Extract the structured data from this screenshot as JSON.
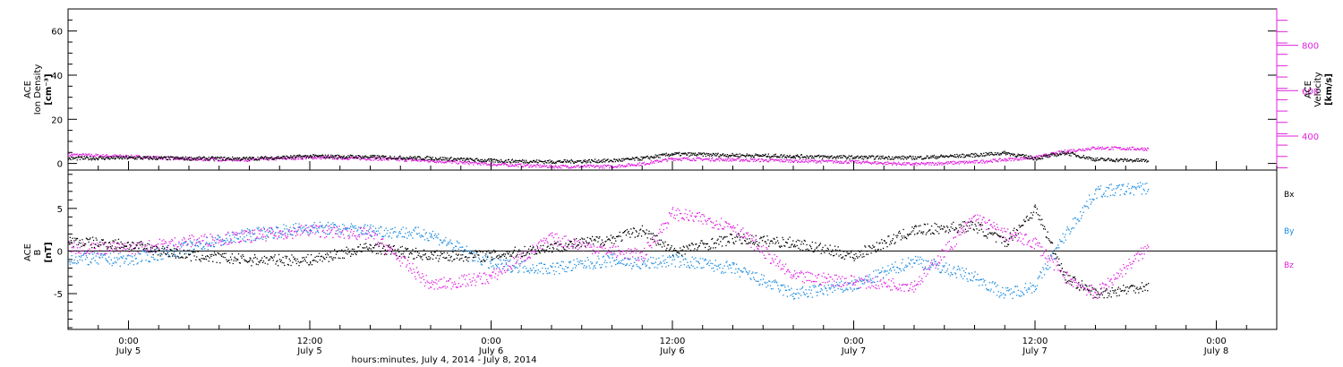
{
  "colors": {
    "black": "#000000",
    "magenta": "#e020e0",
    "blue": "#1a8ce0"
  },
  "x_axis": {
    "label": "hours:minutes, July  4, 2014 - July  8, 2014",
    "ticks": [
      {
        "time": "0:00",
        "date": "July 5"
      },
      {
        "time": "12:00",
        "date": "July 5"
      },
      {
        "time": "0:00",
        "date": "July 6"
      },
      {
        "time": "12:00",
        "date": "July 6"
      },
      {
        "time": "0:00",
        "date": "July 7"
      },
      {
        "time": "12:00",
        "date": "July 7"
      },
      {
        "time": "0:00",
        "date": "July 8"
      }
    ]
  },
  "chart_data": [
    {
      "type": "scatter",
      "panel": "top",
      "xlim": [
        "2014-07-04T20:00",
        "2014-07-08T04:00"
      ],
      "left_axis": {
        "label_line1": "ACE",
        "label_line2": "Ion Density",
        "label_line3": "[cm⁻³]",
        "ylim": [
          -3,
          70
        ],
        "ticks": [
          "0",
          "20",
          "40",
          "60"
        ]
      },
      "right_axis": {
        "label_line1": "ACE",
        "label_line2": "Velocity",
        "label_line3": "[km/s]",
        "ylim": [
          250,
          960
        ],
        "ticks": [
          "400",
          "600",
          "800"
        ]
      },
      "series": [
        {
          "axis": "left",
          "color": "black",
          "x": [
            "2014-07-04T20:00",
            "2014-07-05T00:00",
            "2014-07-05T04:00",
            "2014-07-05T08:00",
            "2014-07-05T12:00",
            "2014-07-05T16:00",
            "2014-07-05T20:00",
            "2014-07-06T00:00",
            "2014-07-06T04:00",
            "2014-07-06T08:00",
            "2014-07-06T10:00",
            "2014-07-06T12:00",
            "2014-07-06T16:00",
            "2014-07-06T20:00",
            "2014-07-07T00:00",
            "2014-07-07T04:00",
            "2014-07-07T08:00",
            "2014-07-07T10:00",
            "2014-07-07T12:00",
            "2014-07-07T14:00",
            "2014-07-07T16:00",
            "2014-07-07T19:30"
          ],
          "y": [
            2.5,
            2.8,
            2.5,
            2.4,
            3.5,
            3.2,
            2.6,
            1.5,
            1.0,
            1.5,
            2.5,
            4.5,
            4.0,
            3.5,
            3.0,
            2.8,
            4.0,
            5.0,
            2.5,
            5.0,
            2.0,
            1.5
          ]
        },
        {
          "axis": "right",
          "color": "magenta",
          "x": [
            "2014-07-04T20:00",
            "2014-07-05T00:00",
            "2014-07-05T04:00",
            "2014-07-05T08:00",
            "2014-07-05T12:00",
            "2014-07-05T16:00",
            "2014-07-05T20:00",
            "2014-07-06T00:00",
            "2014-07-06T04:00",
            "2014-07-06T08:00",
            "2014-07-06T10:00",
            "2014-07-06T12:00",
            "2014-07-06T16:00",
            "2014-07-06T20:00",
            "2014-07-07T00:00",
            "2014-07-07T04:00",
            "2014-07-07T08:00",
            "2014-07-07T10:00",
            "2014-07-07T12:00",
            "2014-07-07T14:00",
            "2014-07-07T16:00",
            "2014-07-07T19:30"
          ],
          "y": [
            320,
            312,
            300,
            298,
            308,
            303,
            293,
            278,
            268,
            268,
            280,
            302,
            298,
            293,
            288,
            278,
            288,
            298,
            308,
            335,
            350,
            345
          ]
        }
      ]
    },
    {
      "type": "scatter",
      "panel": "bottom",
      "xlim": [
        "2014-07-04T20:00",
        "2014-07-08T04:00"
      ],
      "axis": {
        "label_line1": "ACE",
        "label_line2": "B",
        "label_line3": "[nT]",
        "ylim": [
          -9.2,
          9.5
        ],
        "ticks": [
          "5",
          "0",
          "-5"
        ]
      },
      "legend": [
        "Bx",
        "By",
        "Bz"
      ],
      "series": [
        {
          "name": "Bx",
          "color": "black",
          "x": [
            "2014-07-04T20:00",
            "2014-07-05T00:00",
            "2014-07-05T04:00",
            "2014-07-05T08:00",
            "2014-07-05T12:00",
            "2014-07-05T16:00",
            "2014-07-05T20:00",
            "2014-07-06T00:00",
            "2014-07-06T04:00",
            "2014-07-06T08:00",
            "2014-07-06T10:00",
            "2014-07-06T12:00",
            "2014-07-06T16:00",
            "2014-07-06T20:00",
            "2014-07-07T00:00",
            "2014-07-07T04:00",
            "2014-07-07T08:00",
            "2014-07-07T10:00",
            "2014-07-07T12:00",
            "2014-07-07T14:00",
            "2014-07-07T16:00",
            "2014-07-07T19:30"
          ],
          "y": [
            1.2,
            0.8,
            -0.5,
            -1.0,
            -1.0,
            0.5,
            -0.5,
            -0.5,
            0.5,
            1.5,
            2.5,
            0.0,
            1.5,
            1.0,
            -0.5,
            2.5,
            3.0,
            1.0,
            5.0,
            -3.0,
            -5.0,
            -4.0
          ]
        },
        {
          "name": "By",
          "color": "blue",
          "x": [
            "2014-07-04T20:00",
            "2014-07-05T00:00",
            "2014-07-05T04:00",
            "2014-07-05T08:00",
            "2014-07-05T12:00",
            "2014-07-05T16:00",
            "2014-07-05T20:00",
            "2014-07-06T00:00",
            "2014-07-06T04:00",
            "2014-07-06T08:00",
            "2014-07-06T10:00",
            "2014-07-06T12:00",
            "2014-07-06T16:00",
            "2014-07-06T20:00",
            "2014-07-07T00:00",
            "2014-07-07T04:00",
            "2014-07-07T08:00",
            "2014-07-07T10:00",
            "2014-07-07T12:00",
            "2014-07-07T14:00",
            "2014-07-07T16:00",
            "2014-07-07T19:30"
          ],
          "y": [
            -0.8,
            -1.0,
            0.5,
            2.0,
            2.8,
            2.5,
            2.0,
            -1.5,
            -2.0,
            -1.0,
            -1.5,
            -1.0,
            -2.0,
            -5.0,
            -4.0,
            -1.0,
            -3.0,
            -5.0,
            -4.0,
            2.0,
            7.0,
            7.5
          ]
        },
        {
          "name": "Bz",
          "color": "magenta",
          "x": [
            "2014-07-04T20:00",
            "2014-07-05T00:00",
            "2014-07-05T04:00",
            "2014-07-05T08:00",
            "2014-07-05T12:00",
            "2014-07-05T16:00",
            "2014-07-05T20:00",
            "2014-07-06T00:00",
            "2014-07-06T04:00",
            "2014-07-06T08:00",
            "2014-07-06T10:00",
            "2014-07-06T12:00",
            "2014-07-06T16:00",
            "2014-07-06T20:00",
            "2014-07-07T00:00",
            "2014-07-07T04:00",
            "2014-07-07T08:00",
            "2014-07-07T10:00",
            "2014-07-07T12:00",
            "2014-07-07T14:00",
            "2014-07-07T16:00",
            "2014-07-07T19:30"
          ],
          "y": [
            0.5,
            0.3,
            1.2,
            1.8,
            2.5,
            2.0,
            -4.0,
            -3.0,
            1.5,
            0.0,
            -0.5,
            4.5,
            3.0,
            -3.0,
            -3.5,
            -4.0,
            4.0,
            2.0,
            1.0,
            -3.0,
            -5.0,
            0.5
          ]
        }
      ]
    }
  ]
}
